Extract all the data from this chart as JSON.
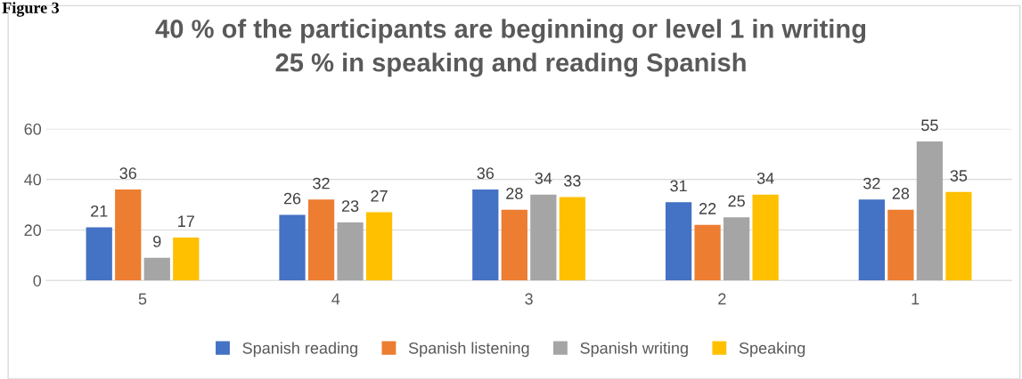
{
  "chart_data": {
    "type": "bar",
    "title": "40 % of the participants are beginning or level 1 in writing\n25 % in speaking and reading Spanish",
    "annotations": [
      "Figure 3"
    ],
    "categories": [
      "5",
      "4",
      "3",
      "2",
      "1"
    ],
    "series": [
      {
        "name": "Spanish reading",
        "color": "#4472c4",
        "values": [
          21,
          26,
          36,
          31,
          32
        ]
      },
      {
        "name": "Spanish listening",
        "color": "#ed7d31",
        "values": [
          36,
          32,
          28,
          22,
          28
        ]
      },
      {
        "name": "Spanish writing",
        "color": "#a5a5a5",
        "values": [
          9,
          23,
          34,
          25,
          55
        ]
      },
      {
        "name": "Speaking",
        "color": "#ffc000",
        "values": [
          17,
          27,
          33,
          34,
          35
        ]
      }
    ],
    "ylim": [
      0,
      60
    ],
    "yticks": [
      0,
      20,
      40,
      60
    ],
    "grid": "y",
    "legend": "bottom",
    "data_labels": true
  }
}
